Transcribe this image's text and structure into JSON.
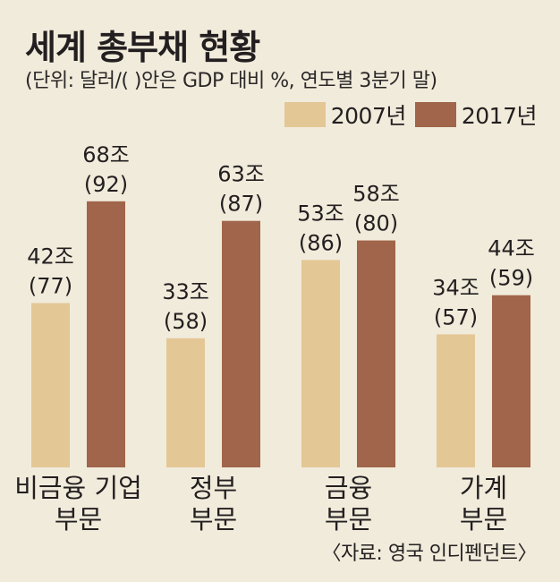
{
  "title": "세계 총부채 현황",
  "subtitle": "(단위: 달러/(   )안은 GDP 대비 %, 연도별 3분기 말)",
  "legend": [
    "2007년",
    "2017년"
  ],
  "source": "〈자료: 영국 인디펜던트〉",
  "colors": {
    "2007": "#e3c795",
    "2017": "#a0654a",
    "background": "#f1ebdb"
  },
  "chart_data": {
    "type": "bar",
    "title": "세계 총부채 현황",
    "categories": [
      [
        "비금융 기업",
        "부문"
      ],
      [
        "정부",
        "부문"
      ],
      [
        "금융",
        "부문"
      ],
      [
        "가계",
        "부문"
      ]
    ],
    "series": [
      {
        "name": "2007년",
        "values": [
          42,
          33,
          53,
          34
        ],
        "gdp_pct": [
          77,
          58,
          86,
          57
        ],
        "value_labels": [
          "42조",
          "33조",
          "53조",
          "34조"
        ],
        "pct_labels": [
          "(77)",
          "(58)",
          "(86)",
          "(57)"
        ]
      },
      {
        "name": "2017년",
        "values": [
          68,
          63,
          58,
          44
        ],
        "gdp_pct": [
          92,
          87,
          80,
          59
        ],
        "value_labels": [
          "68조",
          "63조",
          "58조",
          "44조"
        ],
        "pct_labels": [
          "(92)",
          "(87)",
          "(80)",
          "(59)"
        ]
      }
    ],
    "ylabel": "",
    "xlabel": ""
  }
}
